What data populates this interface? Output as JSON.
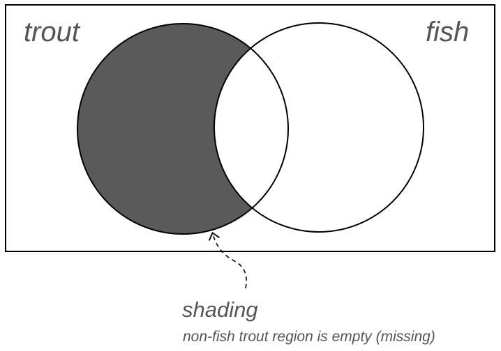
{
  "sets": {
    "left_label": "trout",
    "right_label": "fish"
  },
  "annotation": {
    "title": "shading",
    "caption": "non-fish trout region is empty (missing)"
  },
  "colors": {
    "shading": "#5a5a5a",
    "outline": "#000000",
    "label_text": "#555555",
    "annotation_text": "#555555"
  }
}
